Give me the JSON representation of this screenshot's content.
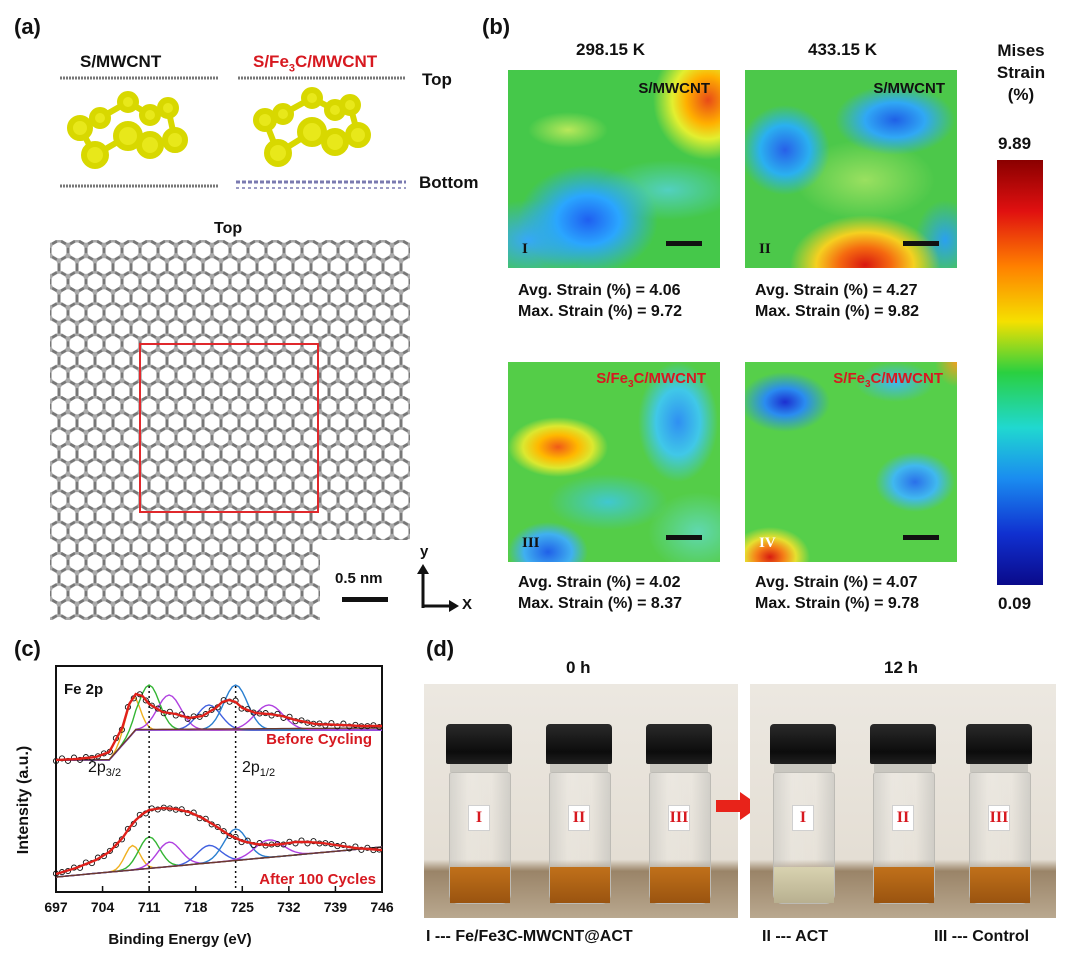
{
  "panel_a": {
    "letter": "(a)",
    "model_left_title": "S/MWCNT",
    "model_right_title": "S/Fe3C/MWCNT",
    "top_label": "Top",
    "bottom_label": "Bottom",
    "lattice_title": "Top",
    "scale_label": "0.5 nm",
    "axis_y": "y",
    "axis_x": "X"
  },
  "panel_b": {
    "letter": "(b)",
    "temp_left": "298.15 K",
    "temp_right": "433.15 K",
    "colorbar_title": [
      "Mises",
      "Strain",
      "(%)"
    ],
    "colorbar_max": "9.89",
    "colorbar_min": "0.09",
    "maps": [
      {
        "roman": "I",
        "label": "S/MWCNT",
        "avg": "Avg. Strain (%) = 4.06",
        "max": "Max. Strain (%) = 9.72"
      },
      {
        "roman": "II",
        "label": "S/MWCNT",
        "avg": "Avg. Strain (%) = 4.27",
        "max": "Max. Strain (%) = 9.82"
      },
      {
        "roman": "III",
        "label": "S/Fe3C/MWCNT",
        "avg": "Avg. Strain (%) = 4.02",
        "max": "Max. Strain (%) = 8.37"
      },
      {
        "roman": "IV",
        "label": "S/Fe3C/MWCNT",
        "avg": "Avg. Strain (%) = 4.07",
        "max": "Max. Strain (%) = 9.78"
      }
    ]
  },
  "chart_data": {
    "type": "line",
    "title": "Fe 2p",
    "xlabel": "Binding Energy (eV)",
    "ylabel": "Intensity (a.u.)",
    "xlim": [
      697,
      746
    ],
    "xticks": [
      "697",
      "704",
      "711",
      "718",
      "725",
      "732",
      "739",
      "746"
    ],
    "peak_labels": [
      "2p3/2",
      "2p1/2"
    ],
    "reference_lines": [
      711,
      724
    ],
    "series": [
      {
        "name": "Before Cycling",
        "x": [
          697,
          700,
          703,
          705,
          707,
          708,
          709,
          710,
          711,
          713,
          715,
          717,
          719,
          721,
          722,
          723,
          724,
          725,
          727,
          729,
          731,
          733,
          736,
          740,
          743,
          746
        ],
        "values": [
          1.22,
          1.23,
          1.25,
          1.3,
          1.55,
          1.78,
          1.88,
          1.86,
          1.78,
          1.7,
          1.68,
          1.64,
          1.66,
          1.74,
          1.8,
          1.82,
          1.8,
          1.74,
          1.69,
          1.68,
          1.66,
          1.62,
          1.58,
          1.57,
          1.56,
          1.56
        ]
      },
      {
        "name": "After 100 Cycles",
        "x": [
          697,
          700,
          703,
          705,
          707,
          708,
          709,
          710,
          711,
          713,
          715,
          717,
          719,
          721,
          723,
          725,
          727,
          729,
          731,
          733,
          735,
          737,
          739,
          742,
          746
        ],
        "values": [
          0.08,
          0.14,
          0.22,
          0.3,
          0.44,
          0.54,
          0.62,
          0.68,
          0.72,
          0.74,
          0.73,
          0.7,
          0.64,
          0.56,
          0.47,
          0.41,
          0.38,
          0.37,
          0.38,
          0.4,
          0.4,
          0.39,
          0.37,
          0.34,
          0.32
        ]
      }
    ]
  },
  "panel_c": {
    "letter": "(c)",
    "legend_before": "Before Cycling",
    "legend_after": "After 100 Cycles"
  },
  "panel_d": {
    "letter": "(d)",
    "time_left": "0 h",
    "time_right": "12 h",
    "vial_labels": [
      "I",
      "II",
      "III"
    ],
    "legend_1": "I --- Fe/Fe3C-MWCNT@ACT",
    "legend_2": "II --- ACT",
    "legend_3": "III --- Control"
  },
  "colors": {
    "accent_red": "#d71920",
    "sulfur": "#e6e600",
    "carbon": "#8a8a8a"
  }
}
